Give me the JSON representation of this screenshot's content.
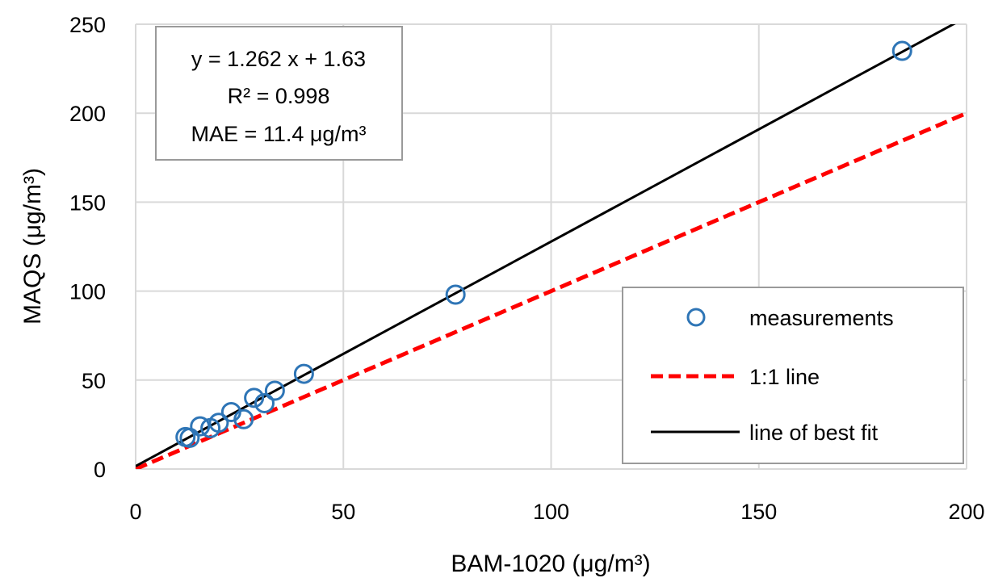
{
  "chart_data": {
    "type": "scatter",
    "xlabel": "BAM-1020 (μg/m³)",
    "ylabel": "MAQS (μg/m³)",
    "xlim": [
      0,
      200
    ],
    "ylim": [
      0,
      250
    ],
    "x_ticks": [
      0,
      50,
      100,
      150,
      200
    ],
    "y_ticks": [
      0,
      50,
      100,
      150,
      200,
      250
    ],
    "x_tick_labels": [
      "0",
      "50",
      "100",
      "150",
      "200"
    ],
    "y_tick_labels": [
      "0",
      "50",
      "100",
      "150",
      "200",
      "250"
    ],
    "grid": true,
    "legend_position": "bottom-right",
    "series": [
      {
        "name": "measurements",
        "kind": "scatter",
        "marker": "open-circle",
        "color": "#2e75b6",
        "points": [
          {
            "x": 12,
            "y": 18
          },
          {
            "x": 13,
            "y": 17.5
          },
          {
            "x": 15.5,
            "y": 24
          },
          {
            "x": 18,
            "y": 23
          },
          {
            "x": 20,
            "y": 26
          },
          {
            "x": 23,
            "y": 32
          },
          {
            "x": 26,
            "y": 28
          },
          {
            "x": 28.5,
            "y": 40
          },
          {
            "x": 31,
            "y": 37
          },
          {
            "x": 33.5,
            "y": 44
          },
          {
            "x": 40.5,
            "y": 53.5
          },
          {
            "x": 77,
            "y": 98
          },
          {
            "x": 184.5,
            "y": 235
          }
        ]
      },
      {
        "name": "1:1 line",
        "kind": "line",
        "style": "dashed",
        "color": "#ff0000",
        "points": [
          {
            "x": 0,
            "y": 0
          },
          {
            "x": 200,
            "y": 200
          }
        ]
      },
      {
        "name": "line of best fit",
        "kind": "line",
        "style": "solid",
        "color": "#000000",
        "slope": 1.262,
        "intercept": 1.63
      }
    ],
    "annotations": {
      "equation": "y = 1.262 x + 1.63",
      "r2": "R² = 0.998",
      "mae": "MAE = 11.4 μg/m³"
    }
  }
}
